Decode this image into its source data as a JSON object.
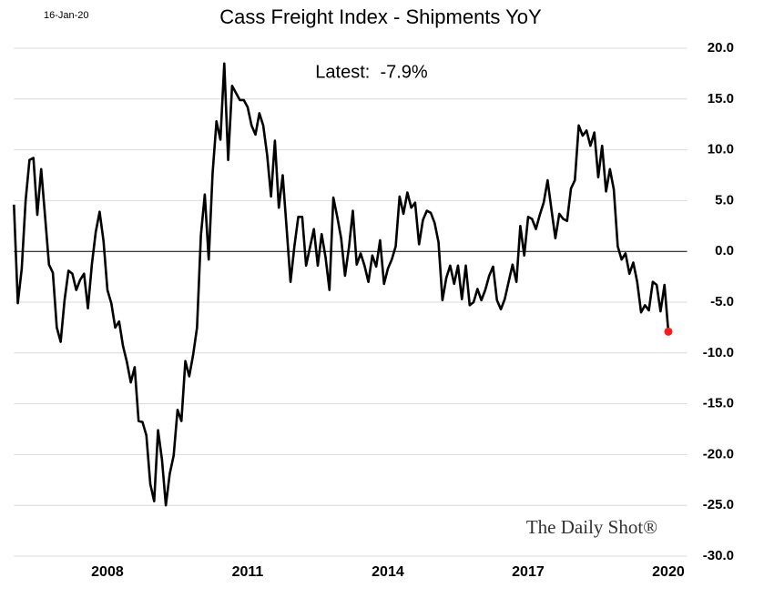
{
  "chart_data": {
    "type": "line",
    "title": "Cass Freight Index - Shipments YoY",
    "date": "16-Jan-20",
    "annotation": "Latest:  -7.9%",
    "source": "The Daily Shot®",
    "color": "#000000",
    "highlight_color": "#ff1a1a",
    "grid": true,
    "zero_line": true,
    "y_axis_side": "right",
    "xlim": [
      2006,
      2020.4
    ],
    "xticks": [
      2008,
      2011,
      2014,
      2017,
      2020
    ],
    "ylim": [
      -30,
      20
    ],
    "yticks": [
      {
        "value": -30,
        "label": "-30.0"
      },
      {
        "value": -25,
        "label": "-25.0"
      },
      {
        "value": -20,
        "label": "-20.0"
      },
      {
        "value": -15,
        "label": "-15.0"
      },
      {
        "value": -10,
        "label": "-10.0"
      },
      {
        "value": -5,
        "label": "-5.0"
      },
      {
        "value": 0,
        "label": "0.0"
      },
      {
        "value": 5,
        "label": "5.0"
      },
      {
        "value": 10,
        "label": "10.0"
      },
      {
        "value": 15,
        "label": "15.0"
      },
      {
        "value": 20,
        "label": "20.0"
      }
    ],
    "x": [
      2006,
      2006.083,
      2006.167,
      2006.25,
      2006.333,
      2006.417,
      2006.5,
      2006.583,
      2006.667,
      2006.75,
      2006.833,
      2006.917,
      2007,
      2007.083,
      2007.167,
      2007.25,
      2007.333,
      2007.417,
      2007.5,
      2007.583,
      2007.667,
      2007.75,
      2007.833,
      2007.917,
      2008,
      2008.083,
      2008.167,
      2008.25,
      2008.333,
      2008.417,
      2008.5,
      2008.583,
      2008.667,
      2008.75,
      2008.833,
      2008.917,
      2009,
      2009.083,
      2009.167,
      2009.25,
      2009.333,
      2009.417,
      2009.5,
      2009.583,
      2009.667,
      2009.75,
      2009.833,
      2009.917,
      2010,
      2010.083,
      2010.167,
      2010.25,
      2010.333,
      2010.417,
      2010.5,
      2010.583,
      2010.667,
      2010.75,
      2010.833,
      2010.917,
      2011,
      2011.083,
      2011.167,
      2011.25,
      2011.333,
      2011.417,
      2011.5,
      2011.583,
      2011.667,
      2011.75,
      2011.833,
      2011.917,
      2012,
      2012.083,
      2012.167,
      2012.25,
      2012.333,
      2012.417,
      2012.5,
      2012.583,
      2012.667,
      2012.75,
      2012.833,
      2012.917,
      2013,
      2013.083,
      2013.167,
      2013.25,
      2013.333,
      2013.417,
      2013.5,
      2013.583,
      2013.667,
      2013.75,
      2013.833,
      2013.917,
      2014,
      2014.083,
      2014.167,
      2014.25,
      2014.333,
      2014.417,
      2014.5,
      2014.583,
      2014.667,
      2014.75,
      2014.833,
      2014.917,
      2015,
      2015.083,
      2015.167,
      2015.25,
      2015.333,
      2015.417,
      2015.5,
      2015.583,
      2015.667,
      2015.75,
      2015.833,
      2015.917,
      2016,
      2016.083,
      2016.167,
      2016.25,
      2016.333,
      2016.417,
      2016.5,
      2016.583,
      2016.667,
      2016.75,
      2016.833,
      2016.917,
      2017,
      2017.083,
      2017.167,
      2017.25,
      2017.333,
      2017.417,
      2017.5,
      2017.583,
      2017.667,
      2017.75,
      2017.833,
      2017.917,
      2018,
      2018.083,
      2018.167,
      2018.25,
      2018.333,
      2018.417,
      2018.5,
      2018.583,
      2018.667,
      2018.75,
      2018.833,
      2018.917,
      2019,
      2019.083,
      2019.167,
      2019.25,
      2019.333,
      2019.417,
      2019.5,
      2019.583,
      2019.667,
      2019.75,
      2019.833,
      2019.917,
      2020
    ],
    "values": [
      4.6,
      -5.1,
      -1.7,
      5.0,
      9.0,
      9.2,
      3.6,
      8.1,
      3.4,
      -1.3,
      -2.1,
      -7.5,
      -8.9,
      -4.8,
      -1.9,
      -2.2,
      -3.8,
      -2.8,
      -2.2,
      -5.6,
      -1.3,
      1.9,
      3.9,
      1.0,
      -3.8,
      -5.1,
      -7.5,
      -6.9,
      -9.3,
      -10.9,
      -12.9,
      -11.4,
      -16.7,
      -16.8,
      -18.1,
      -22.9,
      -24.6,
      -17.6,
      -20.5,
      -25.0,
      -21.9,
      -20.1,
      -15.6,
      -16.7,
      -10.8,
      -12.3,
      -10.2,
      -7.5,
      1.6,
      5.6,
      -0.8,
      7.7,
      12.8,
      11.0,
      18.5,
      9.0,
      16.3,
      15.6,
      14.9,
      14.9,
      14.2,
      12.4,
      11.5,
      13.6,
      12.4,
      9.5,
      5.4,
      10.9,
      4.3,
      7.5,
      2.3,
      -3.0,
      0.5,
      3.4,
      3.4,
      -1.4,
      0.4,
      2.2,
      -1.4,
      1.7,
      -0.6,
      -3.8,
      5.3,
      3.4,
      1.3,
      -2.4,
      0.4,
      4.0,
      -1.3,
      -0.2,
      -1.4,
      -3.0,
      -0.4,
      -1.5,
      1.1,
      -3.2,
      -1.7,
      -0.8,
      0.5,
      5.4,
      3.7,
      5.8,
      4.3,
      4.8,
      0.7,
      3.1,
      4.0,
      3.8,
      2.8,
      0.9,
      -4.8,
      -2.6,
      -1.4,
      -3.2,
      -1.4,
      -4.7,
      -1.4,
      -5.3,
      -5.0,
      -3.7,
      -4.8,
      -3.8,
      -2.4,
      -1.5,
      -4.8,
      -5.7,
      -4.7,
      -3.0,
      -1.3,
      -3.0,
      2.5,
      -0.4,
      3.4,
      3.2,
      2.2,
      3.6,
      4.8,
      7.0,
      4.1,
      1.3,
      3.7,
      3.2,
      3.0,
      6.2,
      7.0,
      12.4,
      11.4,
      11.9,
      10.4,
      11.7,
      7.3,
      10.4,
      5.9,
      8.1,
      6.1,
      0.5,
      -0.8,
      -0.2,
      -2.2,
      -1.1,
      -3.0,
      -6.0,
      -5.3,
      -5.8,
      -3.0,
      -3.3,
      -5.9,
      -3.3,
      -7.9
    ]
  }
}
